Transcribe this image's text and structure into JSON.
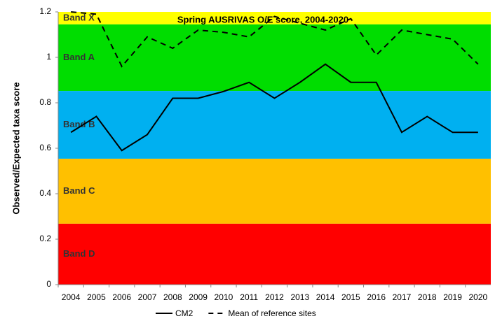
{
  "chart_data": {
    "type": "line",
    "title": "Spring AUSRIVAS O/E score, 2004-2020",
    "y_label": "Observed/Expected taxa score",
    "categories": [
      "2004",
      "2005",
      "2006",
      "2007",
      "2008",
      "2009",
      "2010",
      "2011",
      "2012",
      "2013",
      "2014",
      "2015",
      "2016",
      "2017",
      "2018",
      "2019",
      "2020"
    ],
    "series": [
      {
        "name": "CM2",
        "color": "#000000",
        "dash": "solid",
        "values": [
          0.67,
          0.74,
          0.59,
          0.66,
          0.82,
          0.82,
          0.85,
          0.89,
          0.82,
          0.89,
          0.97,
          0.89,
          0.89,
          0.67,
          0.74,
          0.67,
          0.67
        ]
      },
      {
        "name": "Mean of reference sites",
        "color": "#000000",
        "dash": "dashed",
        "values": [
          1.2,
          1.19,
          0.96,
          1.09,
          1.04,
          1.12,
          1.11,
          1.09,
          1.18,
          1.15,
          1.12,
          1.17,
          1.01,
          1.12,
          1.1,
          1.08,
          0.97
        ]
      }
    ],
    "bands": [
      {
        "label": "Band X",
        "from": 1.145,
        "to": 1.2,
        "color": "#ffff00"
      },
      {
        "label": "Band A",
        "from": 0.852,
        "to": 1.145,
        "color": "#00dd00"
      },
      {
        "label": "Band B",
        "from": 0.554,
        "to": 0.852,
        "color": "#00b0f0"
      },
      {
        "label": "Band C",
        "from": 0.268,
        "to": 0.554,
        "color": "#ffc000"
      },
      {
        "label": "Band D",
        "from": 0,
        "to": 0.268,
        "color": "#ff0000"
      }
    ],
    "ylim": [
      0,
      1.2
    ],
    "yticks": [
      0,
      0.2,
      0.4,
      0.6,
      0.8,
      1,
      1.2
    ],
    "legend": "bottom"
  }
}
